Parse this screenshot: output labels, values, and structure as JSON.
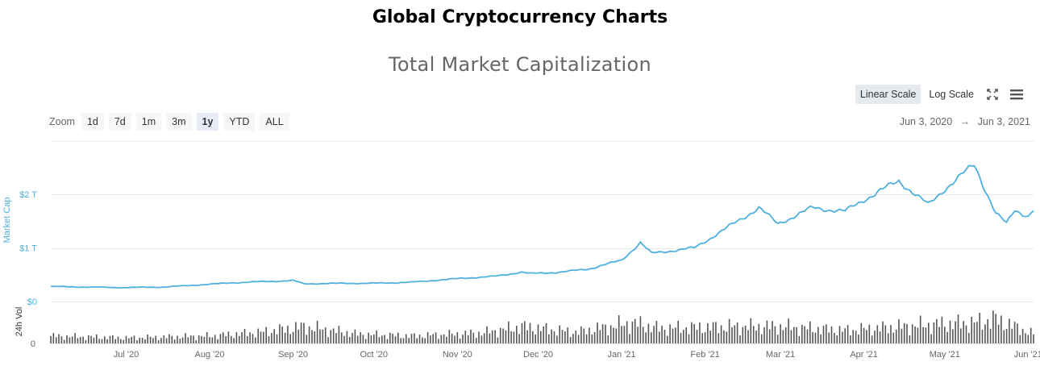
{
  "page": {
    "heading": "Global Cryptocurrency Charts"
  },
  "toolbar": {
    "linear_label": "Linear Scale",
    "log_label": "Log Scale",
    "fullscreen_icon": "fullscreen-icon",
    "menu_icon": "hamburger-menu-icon"
  },
  "zoom": {
    "label": "Zoom",
    "buttons": [
      "1d",
      "7d",
      "1m",
      "3m",
      "1y",
      "YTD",
      "ALL"
    ],
    "selected": "1y"
  },
  "range": {
    "from": "Jun 3, 2020",
    "arrow": "→",
    "to": "Jun 3, 2021"
  },
  "colors": {
    "line": "#4fb0e0",
    "volume": "#555555",
    "grid": "#e6e6e6",
    "axis_text": "#666666",
    "ylabel": "#4fb0e0"
  },
  "chart_data": {
    "type": "line",
    "title": "Total Market Capitalization",
    "ylabel": "Market Cap",
    "y_ticks": [
      "$0",
      "$1 T",
      "$2 T"
    ],
    "ylim": [
      0,
      3
    ],
    "x_ticks": [
      "Jul '20",
      "Aug '20",
      "Sep '20",
      "Oct '20",
      "Nov '20",
      "Dec '20",
      "Jan '21",
      "Feb '21",
      "Mar '21",
      "Apr '21",
      "May '21",
      "Jun '21"
    ],
    "x_tick_dates": [
      "2020-07-01",
      "2020-08-01",
      "2020-09-01",
      "2020-10-01",
      "2020-11-01",
      "2020-12-01",
      "2021-01-01",
      "2021-02-01",
      "2021-03-01",
      "2021-04-01",
      "2021-05-01",
      "2021-06-01"
    ],
    "xlim": [
      "2020-06-03",
      "2021-06-03"
    ],
    "series": [
      {
        "values_unit": "trillion USD",
        "points": [
          [
            "2020-06-03",
            0.28
          ],
          [
            "2020-06-15",
            0.27
          ],
          [
            "2020-06-30",
            0.26
          ],
          [
            "2020-07-15",
            0.27
          ],
          [
            "2020-07-28",
            0.31
          ],
          [
            "2020-08-10",
            0.35
          ],
          [
            "2020-08-20",
            0.37
          ],
          [
            "2020-09-01",
            0.39
          ],
          [
            "2020-09-05",
            0.33
          ],
          [
            "2020-09-20",
            0.34
          ],
          [
            "2020-10-01",
            0.34
          ],
          [
            "2020-10-15",
            0.36
          ],
          [
            "2020-10-25",
            0.4
          ],
          [
            "2020-11-05",
            0.44
          ],
          [
            "2020-11-15",
            0.47
          ],
          [
            "2020-11-25",
            0.55
          ],
          [
            "2020-11-28",
            0.52
          ],
          [
            "2020-12-10",
            0.55
          ],
          [
            "2020-12-20",
            0.61
          ],
          [
            "2021-01-01",
            0.77
          ],
          [
            "2021-01-08",
            1.1
          ],
          [
            "2021-01-12",
            0.9
          ],
          [
            "2021-01-20",
            0.95
          ],
          [
            "2021-01-28",
            1.0
          ],
          [
            "2021-02-10",
            1.4
          ],
          [
            "2021-02-21",
            1.75
          ],
          [
            "2021-02-28",
            1.45
          ],
          [
            "2021-03-13",
            1.75
          ],
          [
            "2021-03-25",
            1.68
          ],
          [
            "2021-04-01",
            1.9
          ],
          [
            "2021-04-14",
            2.25
          ],
          [
            "2021-04-25",
            1.8
          ],
          [
            "2021-05-01",
            2.1
          ],
          [
            "2021-05-12",
            2.55
          ],
          [
            "2021-05-20",
            1.65
          ],
          [
            "2021-05-24",
            1.45
          ],
          [
            "2021-05-27",
            1.7
          ],
          [
            "2021-06-01",
            1.6
          ],
          [
            "2021-06-03",
            1.72
          ]
        ]
      },
      {
        "name": "24h Vol",
        "values_unit": "relative",
        "volume_ylim": [
          0,
          1
        ],
        "points": [
          [
            "2020-06-03",
            0.2
          ],
          [
            "2020-07-01",
            0.15
          ],
          [
            "2020-08-01",
            0.2
          ],
          [
            "2020-08-20",
            0.3
          ],
          [
            "2020-09-05",
            0.45
          ],
          [
            "2020-09-25",
            0.25
          ],
          [
            "2020-10-15",
            0.2
          ],
          [
            "2020-11-10",
            0.28
          ],
          [
            "2020-11-25",
            0.45
          ],
          [
            "2020-12-15",
            0.3
          ],
          [
            "2021-01-05",
            0.55
          ],
          [
            "2021-01-15",
            0.4
          ],
          [
            "2021-02-10",
            0.45
          ],
          [
            "2021-03-01",
            0.45
          ],
          [
            "2021-03-25",
            0.35
          ],
          [
            "2021-04-15",
            0.45
          ],
          [
            "2021-04-25",
            0.5
          ],
          [
            "2021-05-12",
            0.55
          ],
          [
            "2021-05-20",
            0.65
          ],
          [
            "2021-06-03",
            0.25
          ]
        ]
      }
    ],
    "grid": true,
    "volume_ylabel": "24h Vol",
    "volume_tick": "0"
  }
}
